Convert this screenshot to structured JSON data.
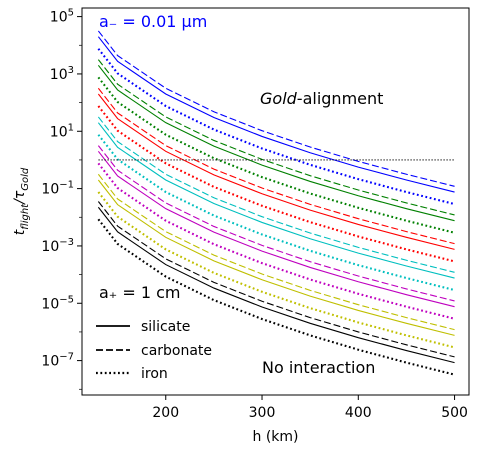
{
  "chart_data": {
    "type": "line",
    "title": "",
    "xlabel": "h (km)",
    "ylabel_main": "t",
    "ylabel_sub_num": "flight",
    "ylabel_mid": "/τ",
    "ylabel_sub_den": "Gold",
    "x_ticks": [
      200,
      300,
      400,
      500
    ],
    "x_tick_labels": [
      "200",
      "300",
      "400",
      "500"
    ],
    "xlim": [
      113,
      515
    ],
    "y_scale": "log",
    "ylim_log10": [
      -8.2,
      5.3
    ],
    "y_tick_exponents": [
      -7,
      -5,
      -3,
      -1,
      1,
      3,
      5
    ],
    "y_tick_labels": [
      {
        "base": "10",
        "exp": "−7"
      },
      {
        "base": "10",
        "exp": "−5"
      },
      {
        "base": "10",
        "exp": "−3"
      },
      {
        "base": "10",
        "exp": "−1"
      },
      {
        "base": "10",
        "exp": "1"
      },
      {
        "base": "10",
        "exp": "3"
      },
      {
        "base": "10",
        "exp": "5"
      }
    ],
    "grid": false,
    "x": [
      130,
      150,
      200,
      250,
      300,
      350,
      400,
      450,
      500
    ],
    "log10_shape": [
      0.0,
      -0.86,
      -2.0,
      -2.82,
      -3.48,
      -4.05,
      -4.55,
      -5.0,
      -5.42
    ],
    "families": [
      {
        "color": "#0000ff",
        "log10_start": 4.3,
        "label_text": "a₋ = 0.01 μm"
      },
      {
        "color": "#008000",
        "log10_start": 3.3
      },
      {
        "color": "#ff0000",
        "log10_start": 2.3
      },
      {
        "color": "#00bfbf",
        "log10_start": 1.3
      },
      {
        "color": "#bf00bf",
        "log10_start": 0.3
      },
      {
        "color": "#bfbf00",
        "log10_start": -0.7
      },
      {
        "color": "#000000",
        "log10_start": -1.65,
        "label_text": "a₊ = 1 cm"
      }
    ],
    "material_offsets_log10": {
      "silicate": 0.0,
      "carbonate": 0.2,
      "iron": -0.42
    },
    "reference_line": {
      "y": 1,
      "style": "dotted",
      "color": "#000000"
    },
    "annotations": [
      {
        "text_italic": "Gold",
        "text_rest": "-alignment"
      },
      {
        "text": "No interaction"
      }
    ],
    "legend": {
      "placement": "lower-left",
      "entries": [
        {
          "name": "silicate",
          "dash": "solid"
        },
        {
          "name": "carbonate",
          "dash": "dashed"
        },
        {
          "name": "iron",
          "dash": "dotted"
        }
      ]
    }
  }
}
